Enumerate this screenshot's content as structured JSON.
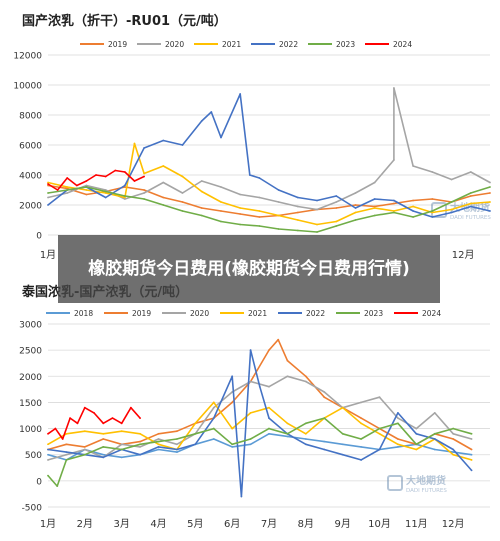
{
  "banner": {
    "title": "橡胶期货今日费用(橡胶期货今日费用行情)"
  },
  "chart_data": [
    {
      "type": "line",
      "title": "国产浓乳（折干）-RU01（元/吨）",
      "xlabel": "",
      "ylabel": "",
      "ylim": [
        0,
        12000
      ],
      "yticks": [
        0,
        2000,
        4000,
        6000,
        8000,
        10000,
        12000
      ],
      "xticks": [
        "1月",
        "12月"
      ],
      "xlim": [
        1,
        12.5
      ],
      "grid": true,
      "legend": "top",
      "watermark": "大地期货 DADI FUTURES",
      "series": [
        {
          "name": "2019",
          "color": "#ed7d31",
          "x": [
            1,
            1.5,
            2,
            2.5,
            3,
            3.5,
            4,
            4.5,
            5,
            5.5,
            6,
            6.5,
            7,
            7.5,
            8,
            8.5,
            9,
            9.5,
            10,
            10.5,
            11,
            11.5,
            12,
            12.5
          ],
          "y": [
            3300,
            3100,
            2700,
            2900,
            3200,
            3000,
            2500,
            2200,
            1800,
            1600,
            1400,
            1200,
            1300,
            1500,
            1700,
            1800,
            2000,
            1900,
            2100,
            2300,
            2400,
            2200,
            2600,
            2800
          ]
        },
        {
          "name": "2020",
          "color": "#a5a5a5",
          "x": [
            1,
            1.5,
            2,
            2.5,
            3,
            3.5,
            4,
            4.5,
            5,
            5.5,
            6,
            6.5,
            7,
            7.5,
            8,
            8.5,
            9,
            9.5,
            10,
            10,
            10.5,
            11,
            11.5,
            12,
            12.5
          ],
          "y": [
            2500,
            2800,
            3300,
            3000,
            2400,
            2800,
            3500,
            2800,
            3600,
            3200,
            2700,
            2500,
            2200,
            1900,
            1700,
            2200,
            2800,
            3500,
            5000,
            9800,
            4600,
            4200,
            3700,
            4200,
            3500
          ]
        },
        {
          "name": "2021",
          "color": "#ffc000",
          "x": [
            1,
            1.5,
            2,
            2.5,
            3,
            3.25,
            3.5,
            4,
            4.5,
            5,
            5.5,
            6,
            6.5,
            7,
            7.5,
            8,
            8.5,
            9,
            9.5,
            10,
            10.5,
            11,
            11.5,
            12,
            12.5
          ],
          "y": [
            3500,
            3200,
            3000,
            2800,
            2500,
            6100,
            4100,
            4600,
            3900,
            2900,
            2200,
            1800,
            1600,
            1300,
            1000,
            700,
            900,
            1500,
            1800,
            1600,
            1900,
            1500,
            1700,
            2100,
            2200
          ]
        },
        {
          "name": "2022",
          "color": "#4472c4",
          "x": [
            1,
            1.5,
            2,
            2.5,
            3,
            3.5,
            4,
            4.5,
            5,
            5.25,
            5.5,
            6,
            6.25,
            6.5,
            7,
            7.5,
            8,
            8.5,
            9,
            9.5,
            10,
            10.5,
            11,
            11.5,
            12,
            12.5
          ],
          "y": [
            2000,
            3000,
            3200,
            2500,
            3300,
            5800,
            6300,
            6000,
            7600,
            8200,
            6500,
            9400,
            4000,
            3800,
            3000,
            2500,
            2300,
            2600,
            1800,
            2400,
            2300,
            1600,
            1200,
            1500,
            1900,
            1600
          ]
        },
        {
          "name": "2023",
          "color": "#70ad47",
          "x": [
            1,
            1.5,
            2,
            2.5,
            3,
            3.5,
            4,
            4.5,
            5,
            5.5,
            6,
            6.5,
            7,
            7.5,
            8,
            8.5,
            9,
            9.5,
            10,
            10.5,
            11,
            11.5,
            12,
            12.5
          ],
          "y": [
            2800,
            3000,
            3200,
            2900,
            2600,
            2400,
            2000,
            1600,
            1300,
            900,
            700,
            600,
            400,
            300,
            200,
            600,
            1000,
            1300,
            1500,
            1200,
            1600,
            2200,
            2800,
            3200
          ]
        },
        {
          "name": "2024",
          "color": "#ff0000",
          "x": [
            1,
            1.25,
            1.5,
            1.75,
            2,
            2.25,
            2.5,
            2.75,
            3,
            3.25,
            3.5
          ],
          "y": [
            3400,
            3000,
            3800,
            3300,
            3600,
            4000,
            3900,
            4300,
            4200,
            3600,
            3900
          ]
        }
      ]
    },
    {
      "type": "line",
      "title": "泰国浓乳-国产浓乳（元/吨）",
      "xlabel": "",
      "ylabel": "",
      "ylim": [
        -500,
        3000
      ],
      "yticks": [
        -500,
        0,
        500,
        1000,
        1500,
        2000,
        2500,
        3000
      ],
      "xticks": [
        "1月",
        "2月",
        "3月",
        "4月",
        "5月",
        "6月",
        "7月",
        "8月",
        "9月",
        "10月",
        "11月",
        "12月"
      ],
      "xlim": [
        1,
        13
      ],
      "grid": true,
      "legend": "top",
      "watermark": "大地期货 DADI FUTURES",
      "series": [
        {
          "name": "2018",
          "color": "#5b9bd5",
          "x": [
            1,
            1.5,
            2,
            2.5,
            3,
            3.5,
            4,
            4.5,
            5,
            5.5,
            6,
            6.5,
            7,
            7.5,
            8,
            8.5,
            9,
            9.5,
            10,
            10.5,
            11,
            11.5,
            12,
            12.5
          ],
          "y": [
            500,
            400,
            600,
            500,
            450,
            500,
            600,
            550,
            700,
            800,
            650,
            700,
            900,
            850,
            800,
            750,
            700,
            650,
            600,
            650,
            700,
            600,
            550,
            500
          ]
        },
        {
          "name": "2019",
          "color": "#ed7d31",
          "x": [
            1,
            1.5,
            2,
            2.5,
            3,
            3.5,
            4,
            4.5,
            5,
            5.5,
            6,
            6.5,
            7,
            7.25,
            7.5,
            8,
            8.5,
            9,
            9.5,
            10,
            10.5,
            11,
            11.5,
            12,
            12.5
          ],
          "y": [
            600,
            700,
            650,
            800,
            700,
            750,
            900,
            950,
            1100,
            1200,
            1500,
            1900,
            2500,
            2700,
            2300,
            2000,
            1600,
            1400,
            1200,
            1000,
            800,
            700,
            900,
            800,
            600
          ]
        },
        {
          "name": "2020",
          "color": "#a5a5a5",
          "x": [
            1,
            1.5,
            2,
            2.5,
            3,
            3.5,
            4,
            4.5,
            5,
            5.5,
            6,
            6.5,
            7,
            7.5,
            8,
            8.5,
            9,
            9.5,
            10,
            10.5,
            11,
            11.5,
            12,
            12.5
          ],
          "y": [
            400,
            500,
            600,
            450,
            700,
            650,
            800,
            700,
            900,
            1400,
            1700,
            1900,
            1800,
            2000,
            1900,
            1700,
            1400,
            1500,
            1600,
            1200,
            1000,
            1300,
            900,
            800
          ]
        },
        {
          "name": "2021",
          "color": "#ffc000",
          "x": [
            1,
            1.5,
            2,
            2.5,
            3,
            3.5,
            4,
            4.5,
            5,
            5.5,
            6,
            6.5,
            7,
            7.5,
            8,
            8.5,
            9,
            9.5,
            10,
            10.5,
            11,
            11.5,
            12,
            12.5
          ],
          "y": [
            700,
            900,
            950,
            900,
            950,
            900,
            700,
            600,
            1100,
            1500,
            1000,
            1300,
            1400,
            1100,
            900,
            1200,
            1400,
            1100,
            900,
            700,
            600,
            800,
            500,
            400
          ]
        },
        {
          "name": "2022",
          "color": "#4472c4",
          "x": [
            1,
            1.5,
            2,
            2.5,
            3,
            3.5,
            4,
            4.5,
            5,
            5.5,
            6,
            6.25,
            6.5,
            6.75,
            7,
            7.5,
            8,
            8.5,
            9,
            9.5,
            10,
            10.5,
            11,
            11.5,
            12,
            12.5
          ],
          "y": [
            600,
            550,
            500,
            450,
            600,
            500,
            650,
            600,
            700,
            1200,
            2000,
            -300,
            2500,
            1800,
            1200,
            900,
            700,
            600,
            500,
            400,
            600,
            1300,
            900,
            800,
            600,
            200
          ]
        },
        {
          "name": "2023",
          "color": "#70ad47",
          "x": [
            1,
            1.25,
            1.5,
            2,
            2.5,
            3,
            3.5,
            4,
            4.5,
            5,
            5.5,
            6,
            6.5,
            7,
            7.5,
            8,
            8.5,
            9,
            9.5,
            10,
            10.5,
            11,
            11.5,
            12,
            12.5
          ],
          "y": [
            100,
            -100,
            400,
            500,
            650,
            600,
            700,
            750,
            800,
            900,
            1000,
            700,
            800,
            1000,
            900,
            1100,
            1200,
            900,
            800,
            1000,
            1100,
            700,
            900,
            1000,
            900
          ]
        },
        {
          "name": "2024",
          "color": "#ff0000",
          "x": [
            1,
            1.2,
            1.4,
            1.6,
            1.8,
            2,
            2.25,
            2.5,
            2.75,
            3,
            3.25,
            3.5
          ],
          "y": [
            900,
            1000,
            800,
            1200,
            1100,
            1400,
            1300,
            1100,
            1200,
            1100,
            1400,
            1200
          ]
        }
      ]
    }
  ]
}
